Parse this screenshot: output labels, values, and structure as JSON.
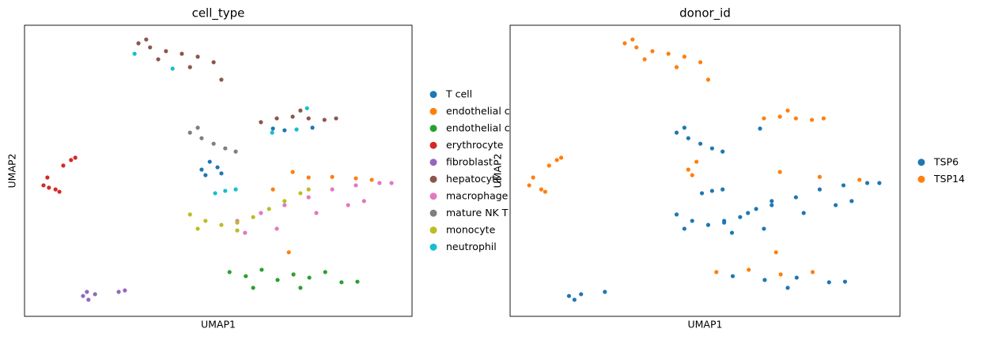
{
  "chart_data": [
    {
      "type": "scatter",
      "title": "cell_type",
      "xlabel": "UMAP1",
      "ylabel": "UMAP2",
      "xlim": [
        0,
        100
      ],
      "ylim": [
        0,
        100
      ],
      "legend": "right",
      "series": [
        {
          "name": "T cell",
          "color": "#1f77b4",
          "x": [
            45.7,
            47.8,
            49.8,
            46.7,
            50.8,
            64.1,
            67.1,
            74.3
          ],
          "values": [
            50.4,
            53.1,
            51.2,
            48.5,
            49.1,
            64.5,
            63.9,
            64.8
          ]
        },
        {
          "name": "endothelial cell",
          "color": "#ff7f0e",
          "x": [
            69.2,
            73.3,
            79.4,
            85.5,
            89.6,
            68.2,
            64.1
          ],
          "values": [
            49.6,
            47.7,
            47.9,
            47.4,
            46.9,
            22.0,
            43.6
          ]
        },
        {
          "name": "endothelial cell of hepatic sinusoid",
          "color": "#2ca02c",
          "x": [
            52.9,
            57.1,
            61.2,
            65.3,
            69.4,
            73.5,
            77.6,
            81.8,
            85.9,
            59.0,
            71.2
          ],
          "values": [
            15.2,
            13.8,
            16.0,
            12.5,
            14.4,
            13.3,
            15.2,
            11.7,
            11.9,
            9.8,
            9.8
          ]
        },
        {
          "name": "erythrocyte",
          "color": "#d62728",
          "x": [
            4.9,
            5.9,
            8.0,
            9.0,
            10.0,
            12.0,
            13.1,
            6.3
          ],
          "values": [
            45.0,
            47.7,
            43.6,
            42.8,
            51.8,
            53.7,
            54.5,
            44.2
          ]
        },
        {
          "name": "fibroblast",
          "color": "#9467bd",
          "x": [
            15.1,
            16.5,
            16.1,
            18.2,
            24.3,
            25.9
          ],
          "values": [
            7.0,
            5.7,
            8.4,
            7.6,
            8.4,
            8.9
          ]
        },
        {
          "name": "hepatocyte",
          "color": "#8c564b",
          "x": [
            29.4,
            32.4,
            36.5,
            40.6,
            44.7,
            48.8,
            50.8,
            34.5,
            42.7,
            31.4,
            61.0,
            65.1,
            69.2,
            73.3,
            77.4,
            80.4,
            71.2
          ],
          "values": [
            93.8,
            92.4,
            91.1,
            90.2,
            89.2,
            87.3,
            81.3,
            88.3,
            85.6,
            95.1,
            66.7,
            68.0,
            68.6,
            68.0,
            67.5,
            68.0,
            70.7
          ]
        },
        {
          "name": "macrophage",
          "color": "#e377c2",
          "x": [
            54.9,
            61.0,
            67.1,
            73.3,
            79.4,
            85.5,
            91.6,
            94.7,
            83.5,
            75.3,
            65.1,
            56.9,
            87.6
          ],
          "values": [
            32.8,
            35.5,
            38.2,
            40.9,
            43.6,
            45.0,
            45.8,
            45.8,
            38.2,
            35.5,
            30.1,
            28.7,
            39.6
          ]
        },
        {
          "name": "mature NK T cell",
          "color": "#7f7f7f",
          "x": [
            42.7,
            45.7,
            48.8,
            51.8,
            54.5,
            44.7
          ],
          "values": [
            63.1,
            61.2,
            59.3,
            57.7,
            56.6,
            64.8
          ]
        },
        {
          "name": "monocyte",
          "color": "#bcbd22",
          "x": [
            42.7,
            46.7,
            50.8,
            54.9,
            59.0,
            63.1,
            67.1,
            71.2,
            73.3,
            44.7,
            54.9
          ],
          "values": [
            35.0,
            32.8,
            31.4,
            32.2,
            34.1,
            36.9,
            39.6,
            42.3,
            43.6,
            30.1,
            29.5
          ]
        },
        {
          "name": "neutrophil",
          "color": "#17becf",
          "x": [
            49.2,
            51.8,
            54.5,
            28.4,
            38.2,
            70.2,
            72.9,
            63.9
          ],
          "values": [
            42.3,
            43.1,
            43.6,
            90.2,
            85.1,
            64.2,
            71.5,
            63.1
          ]
        }
      ]
    },
    {
      "type": "scatter",
      "title": "donor_id",
      "xlabel": "UMAP1",
      "ylabel": "UMAP2",
      "xlim": [
        0,
        100
      ],
      "ylim": [
        0,
        100
      ],
      "legend": "right",
      "series": [
        {
          "name": "TSP6",
          "color": "#1f77b4",
          "x": [
            42.7,
            45.7,
            48.8,
            51.8,
            54.5,
            44.7,
            54.9,
            61.0,
            67.1,
            73.3,
            79.4,
            85.5,
            91.6,
            94.7,
            83.5,
            75.3,
            65.1,
            56.9,
            87.6,
            42.7,
            46.7,
            50.8,
            54.9,
            59.0,
            63.1,
            67.1,
            44.7,
            15.1,
            16.5,
            18.2,
            24.3,
            57.1,
            65.3,
            73.5,
            81.8,
            85.9,
            71.2,
            49.2,
            51.8,
            54.5,
            64.1
          ],
          "values": [
            63.1,
            61.2,
            59.3,
            57.7,
            56.6,
            64.8,
            32.8,
            35.5,
            38.2,
            40.9,
            43.6,
            45.0,
            45.8,
            45.8,
            38.2,
            35.5,
            30.1,
            28.7,
            39.6,
            35.0,
            32.8,
            31.4,
            32.2,
            34.1,
            36.9,
            39.6,
            30.1,
            7.0,
            5.7,
            7.6,
            8.4,
            13.8,
            12.5,
            13.3,
            11.7,
            11.9,
            9.8,
            42.3,
            43.1,
            43.6,
            64.5
          ]
        },
        {
          "name": "TSP14",
          "color": "#ff7f0e",
          "x": [
            29.4,
            32.4,
            36.5,
            40.6,
            44.7,
            48.8,
            50.8,
            34.5,
            42.7,
            31.4,
            65.1,
            69.2,
            73.3,
            77.4,
            80.4,
            71.2,
            4.9,
            5.9,
            8.0,
            9.0,
            10.0,
            12.0,
            13.1,
            45.7,
            47.8,
            46.7,
            69.2,
            79.4,
            89.6,
            68.2,
            52.9,
            61.2,
            69.4,
            77.6
          ],
          "values": [
            93.8,
            92.4,
            91.1,
            90.2,
            89.2,
            87.3,
            81.3,
            88.3,
            85.6,
            95.1,
            68.0,
            68.6,
            68.0,
            67.5,
            68.0,
            70.7,
            45.0,
            47.7,
            43.6,
            42.8,
            51.8,
            53.7,
            54.5,
            50.4,
            53.1,
            48.5,
            49.6,
            47.9,
            46.9,
            22.0,
            15.2,
            16.0,
            14.4,
            15.2
          ]
        }
      ]
    }
  ]
}
